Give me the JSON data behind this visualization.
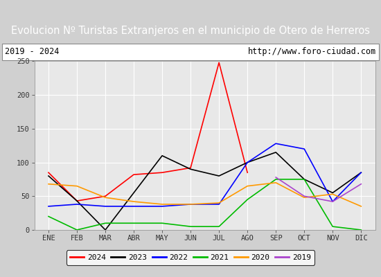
{
  "title": "Evolucion Nº Turistas Extranjeros en el municipio de Otero de Herreros",
  "subtitle_left": "2019 - 2024",
  "subtitle_right": "http://www.foro-ciudad.com",
  "x_labels": [
    "ENE",
    "FEB",
    "MAR",
    "ABR",
    "MAY",
    "JUN",
    "JUL",
    "AGO",
    "SEP",
    "OCT",
    "NOV",
    "DIC"
  ],
  "ylim": [
    0,
    250
  ],
  "yticks": [
    0,
    50,
    100,
    150,
    200,
    250
  ],
  "series": {
    "2024": {
      "color": "#ff0000",
      "values": [
        85,
        43,
        50,
        82,
        85,
        92,
        248,
        85,
        null,
        null,
        null,
        null
      ]
    },
    "2023": {
      "color": "#000000",
      "values": [
        80,
        43,
        0,
        55,
        110,
        90,
        80,
        100,
        115,
        75,
        55,
        85
      ]
    },
    "2022": {
      "color": "#0000ff",
      "values": [
        35,
        38,
        35,
        35,
        35,
        38,
        38,
        100,
        128,
        120,
        42,
        85
      ]
    },
    "2021": {
      "color": "#00bb00",
      "values": [
        20,
        0,
        10,
        10,
        10,
        5,
        5,
        45,
        75,
        75,
        5,
        0
      ]
    },
    "2020": {
      "color": "#ff9900",
      "values": [
        68,
        65,
        48,
        42,
        38,
        38,
        40,
        65,
        70,
        48,
        53,
        35
      ]
    },
    "2019": {
      "color": "#aa44cc",
      "values": [
        null,
        null,
        null,
        null,
        null,
        null,
        null,
        null,
        78,
        50,
        42,
        68
      ]
    }
  },
  "title_bg_color": "#4f74c8",
  "title_text_color": "#ffffff",
  "title_fontsize": 10.5,
  "subtitle_fontsize": 8.5,
  "tick_fontsize": 7.5,
  "plot_bg_color": "#e8e8e8",
  "grid_color": "#ffffff",
  "legend_order": [
    "2024",
    "2023",
    "2022",
    "2021",
    "2020",
    "2019"
  ],
  "fig_width": 5.5,
  "fig_height": 4.0,
  "dpi": 100
}
